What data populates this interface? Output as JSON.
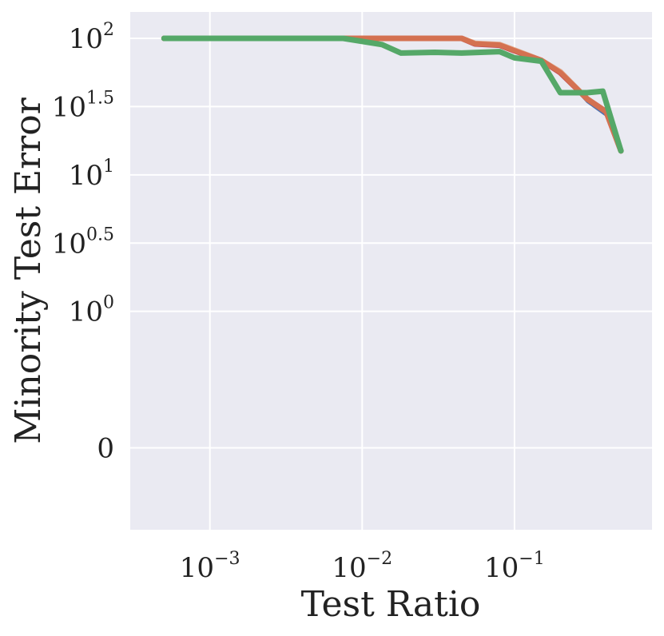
{
  "chart_data": {
    "type": "line",
    "xlabel": "Test Ratio",
    "ylabel": "Minority Test Error",
    "x_scale": "log",
    "y_scale": "symlog",
    "xlim": [
      0.0003,
      0.8
    ],
    "ylim": [
      -0.6,
      100
    ],
    "x_ticks": [
      {
        "value": 0.001,
        "base": "10",
        "exp": "−3"
      },
      {
        "value": 0.01,
        "base": "10",
        "exp": "−2"
      },
      {
        "value": 0.1,
        "base": "10",
        "exp": "−1"
      }
    ],
    "y_ticks": [
      {
        "value": 100,
        "base": "10",
        "exp": "2"
      },
      {
        "value": 31.623,
        "base": "10",
        "exp": "1.5"
      },
      {
        "value": 10,
        "base": "10",
        "exp": "1"
      },
      {
        "value": 3.162,
        "base": "10",
        "exp": "0.5"
      },
      {
        "value": 1,
        "base": "10",
        "exp": "0"
      },
      {
        "value": 0,
        "base": "0",
        "exp": ""
      }
    ],
    "grid": true,
    "background_color": "#eaeaf2",
    "series": [
      {
        "color": "#4c72b0",
        "width": 2,
        "x": [
          0.0005,
          0.0075,
          0.045,
          0.055,
          0.08,
          0.1,
          0.15,
          0.2,
          0.3,
          0.4,
          0.5
        ],
        "y": [
          100,
          100,
          100,
          90,
          88,
          81,
          70,
          56,
          34,
          27,
          15
        ]
      },
      {
        "color": "#c44e52",
        "width": 7,
        "x": [
          0.0005,
          0.0075,
          0.045,
          0.055,
          0.08,
          0.1,
          0.15,
          0.2,
          0.3,
          0.4,
          0.5
        ],
        "y": [
          100,
          100,
          100,
          91,
          89,
          81,
          69,
          56,
          36,
          29,
          15
        ]
      },
      {
        "color": "#dd8452",
        "width": 7,
        "opacity": 0.65,
        "x": [
          0.0005,
          0.0075,
          0.045,
          0.055,
          0.08,
          0.1,
          0.15,
          0.2,
          0.3,
          0.4,
          0.5
        ],
        "y": [
          100,
          100,
          100,
          92,
          90,
          82,
          69,
          57,
          36,
          29,
          15
        ]
      },
      {
        "color": "#55a868",
        "width": 7,
        "x": [
          0.0005,
          0.0075,
          0.0135,
          0.018,
          0.03,
          0.045,
          0.08,
          0.1,
          0.15,
          0.2,
          0.3,
          0.38,
          0.5
        ],
        "y": [
          100,
          100,
          90,
          78,
          79,
          78,
          80,
          72,
          68,
          40,
          40,
          41,
          15
        ]
      }
    ]
  }
}
